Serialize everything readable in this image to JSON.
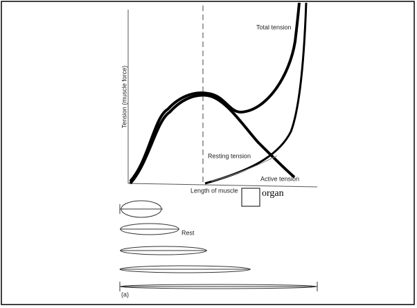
{
  "axes": {
    "y_label": "Tension (muscle force)",
    "x_label": "Length of muscle",
    "box_label": "organ"
  },
  "curves": {
    "total": "Total tension",
    "resting": "Resting tension",
    "active": "Active tension"
  },
  "muscles": {
    "rest_label": "Rest",
    "panel_label": "(a)"
  }
}
